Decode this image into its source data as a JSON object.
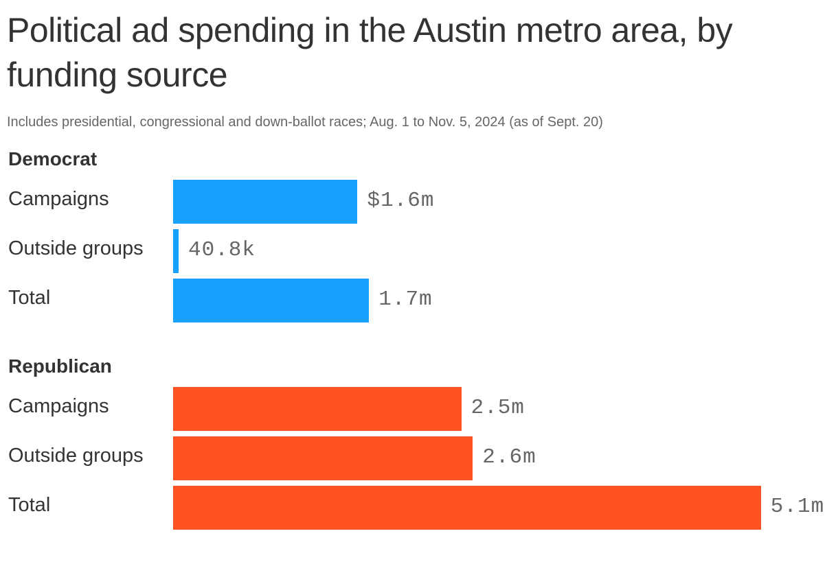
{
  "title": "Political ad spending in the Austin metro area, by funding source",
  "subtitle": "Includes presidential, congressional and down-ballot races; Aug. 1 to Nov. 5, 2024 (as of Sept. 20)",
  "chart_data": {
    "type": "bar",
    "orientation": "horizontal",
    "groups": [
      {
        "name": "Democrat",
        "color": "#18a0ff",
        "categories": [
          "Campaigns",
          "Outside groups",
          "Total"
        ],
        "values": [
          1.6,
          0.0408,
          1.7
        ],
        "labels": [
          "$1.6m",
          "40.8k",
          "1.7m"
        ]
      },
      {
        "name": "Republican",
        "color": "#ff5122",
        "categories": [
          "Campaigns",
          "Outside groups",
          "Total"
        ],
        "values": [
          2.5,
          2.6,
          5.1
        ],
        "labels": [
          "2.5m",
          "2.6m",
          "5.1m"
        ]
      }
    ],
    "unit": "millions of dollars"
  }
}
